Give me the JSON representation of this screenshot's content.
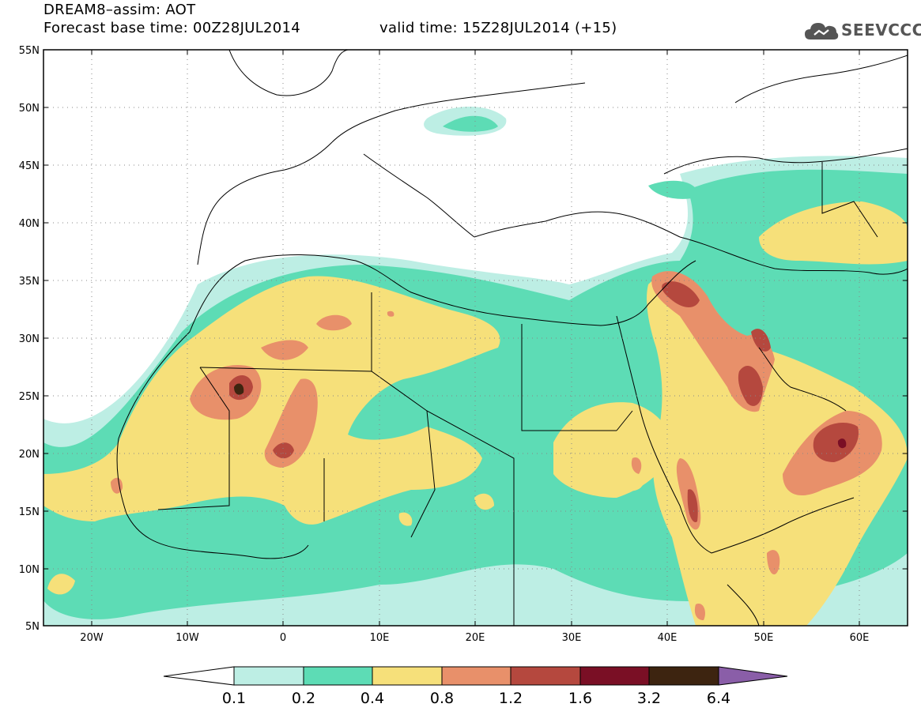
{
  "header": {
    "title": "DREAM8–assim: AOT",
    "base_time": "Forecast base time: 00Z28JUL2014",
    "valid_time": "valid time: 15Z28JUL2014 (+15)",
    "logo_text": "SEEVCCC",
    "logo_icon": "cloud-icon"
  },
  "map": {
    "lat_labels": [
      "55N",
      "50N",
      "45N",
      "40N",
      "35N",
      "30N",
      "25N",
      "20N",
      "15N",
      "10N",
      "5N"
    ],
    "lon_labels": [
      "20W",
      "10W",
      "0",
      "10E",
      "20E",
      "30E",
      "40E",
      "50E",
      "60E"
    ],
    "lat_range": [
      5,
      55
    ],
    "lon_range": [
      -25,
      65
    ],
    "grid": "dotted"
  },
  "colorbar": {
    "labels": [
      "0.1",
      "0.2",
      "0.4",
      "0.8",
      "1.2",
      "1.6",
      "3.2",
      "6.4"
    ],
    "colors": [
      "#ffffff",
      "#bdeee4",
      "#5ddcb5",
      "#f6e07a",
      "#e8906a",
      "#b5483e",
      "#7a0f25",
      "#3d2410",
      "#8a5ea8"
    ]
  },
  "colors": {
    "level1": "#bdeee4",
    "level2": "#5ddcb5",
    "level3": "#f6e07a",
    "level4": "#e8906a",
    "level5": "#b5483e",
    "level6": "#7a0f25",
    "level7": "#3d2410"
  }
}
